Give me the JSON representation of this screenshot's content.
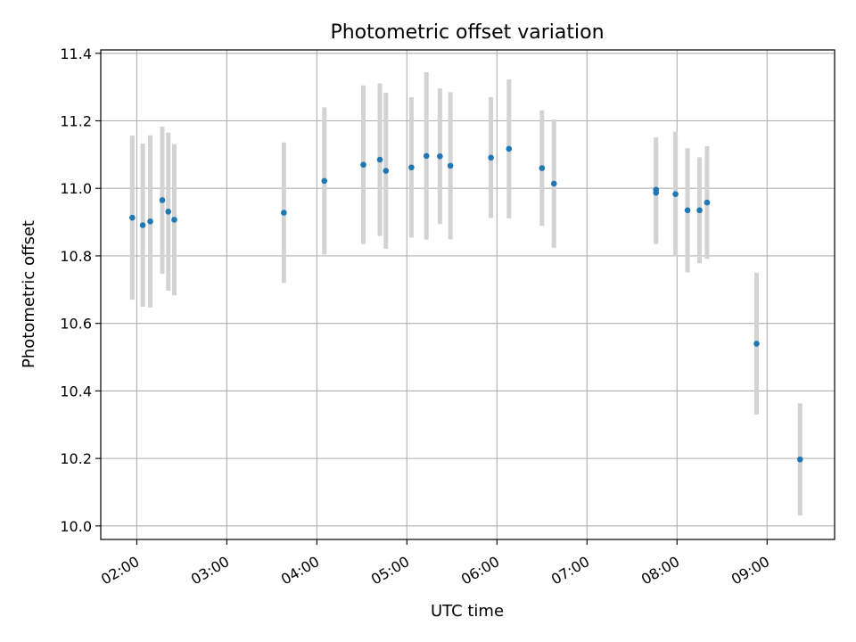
{
  "chart_data": {
    "type": "scatter",
    "title": "Photometric offset variation",
    "xlabel": "UTC time",
    "ylabel": "Photometric offset",
    "x_unit": "UTC time (HH:MM)",
    "xlim": [
      "01:36",
      "09:45"
    ],
    "ylim": [
      9.96,
      11.41
    ],
    "x_ticks": [
      "02:00",
      "03:00",
      "04:00",
      "05:00",
      "06:00",
      "07:00",
      "08:00",
      "09:00"
    ],
    "y_ticks": [
      "10.0",
      "10.2",
      "10.4",
      "10.6",
      "10.8",
      "11.0",
      "11.2",
      "11.4"
    ],
    "y_tick_values": [
      10.0,
      10.2,
      10.4,
      10.6,
      10.8,
      11.0,
      11.2,
      11.4
    ],
    "grid": true,
    "x_tick_rotation": "angled",
    "point_color": "#1f77b4",
    "errorbar_color": "#d3d3d3",
    "points": [
      {
        "x": "01:57",
        "y": 10.913,
        "err": 0.243
      },
      {
        "x": "02:04",
        "y": 10.891,
        "err": 0.242
      },
      {
        "x": "02:09",
        "y": 10.902,
        "err": 0.255
      },
      {
        "x": "02:17",
        "y": 10.965,
        "err": 0.218
      },
      {
        "x": "02:21",
        "y": 10.931,
        "err": 0.234
      },
      {
        "x": "02:25",
        "y": 10.907,
        "err": 0.224
      },
      {
        "x": "03:38",
        "y": 10.928,
        "err": 0.208
      },
      {
        "x": "04:05",
        "y": 11.022,
        "err": 0.218
      },
      {
        "x": "04:31",
        "y": 11.07,
        "err": 0.235
      },
      {
        "x": "04:42",
        "y": 11.085,
        "err": 0.226
      },
      {
        "x": "04:46",
        "y": 11.052,
        "err": 0.231
      },
      {
        "x": "05:03",
        "y": 11.062,
        "err": 0.208
      },
      {
        "x": "05:13",
        "y": 11.096,
        "err": 0.248
      },
      {
        "x": "05:22",
        "y": 11.095,
        "err": 0.201
      },
      {
        "x": "05:29",
        "y": 11.067,
        "err": 0.218
      },
      {
        "x": "05:56",
        "y": 11.091,
        "err": 0.179
      },
      {
        "x": "06:08",
        "y": 11.117,
        "err": 0.206
      },
      {
        "x": "06:30",
        "y": 11.06,
        "err": 0.171
      },
      {
        "x": "06:38",
        "y": 11.014,
        "err": 0.19
      },
      {
        "x": "07:46",
        "y": 10.996,
        "err": 0.155
      },
      {
        "x": "07:46",
        "y": 10.987,
        "err": 0.152
      },
      {
        "x": "07:59",
        "y": 10.983,
        "err": 0.185
      },
      {
        "x": "08:07",
        "y": 10.935,
        "err": 0.184
      },
      {
        "x": "08:15",
        "y": 10.935,
        "err": 0.157
      },
      {
        "x": "08:20",
        "y": 10.958,
        "err": 0.167
      },
      {
        "x": "08:53",
        "y": 10.54,
        "err": 0.21
      },
      {
        "x": "09:22",
        "y": 10.197,
        "err": 0.166
      }
    ]
  }
}
